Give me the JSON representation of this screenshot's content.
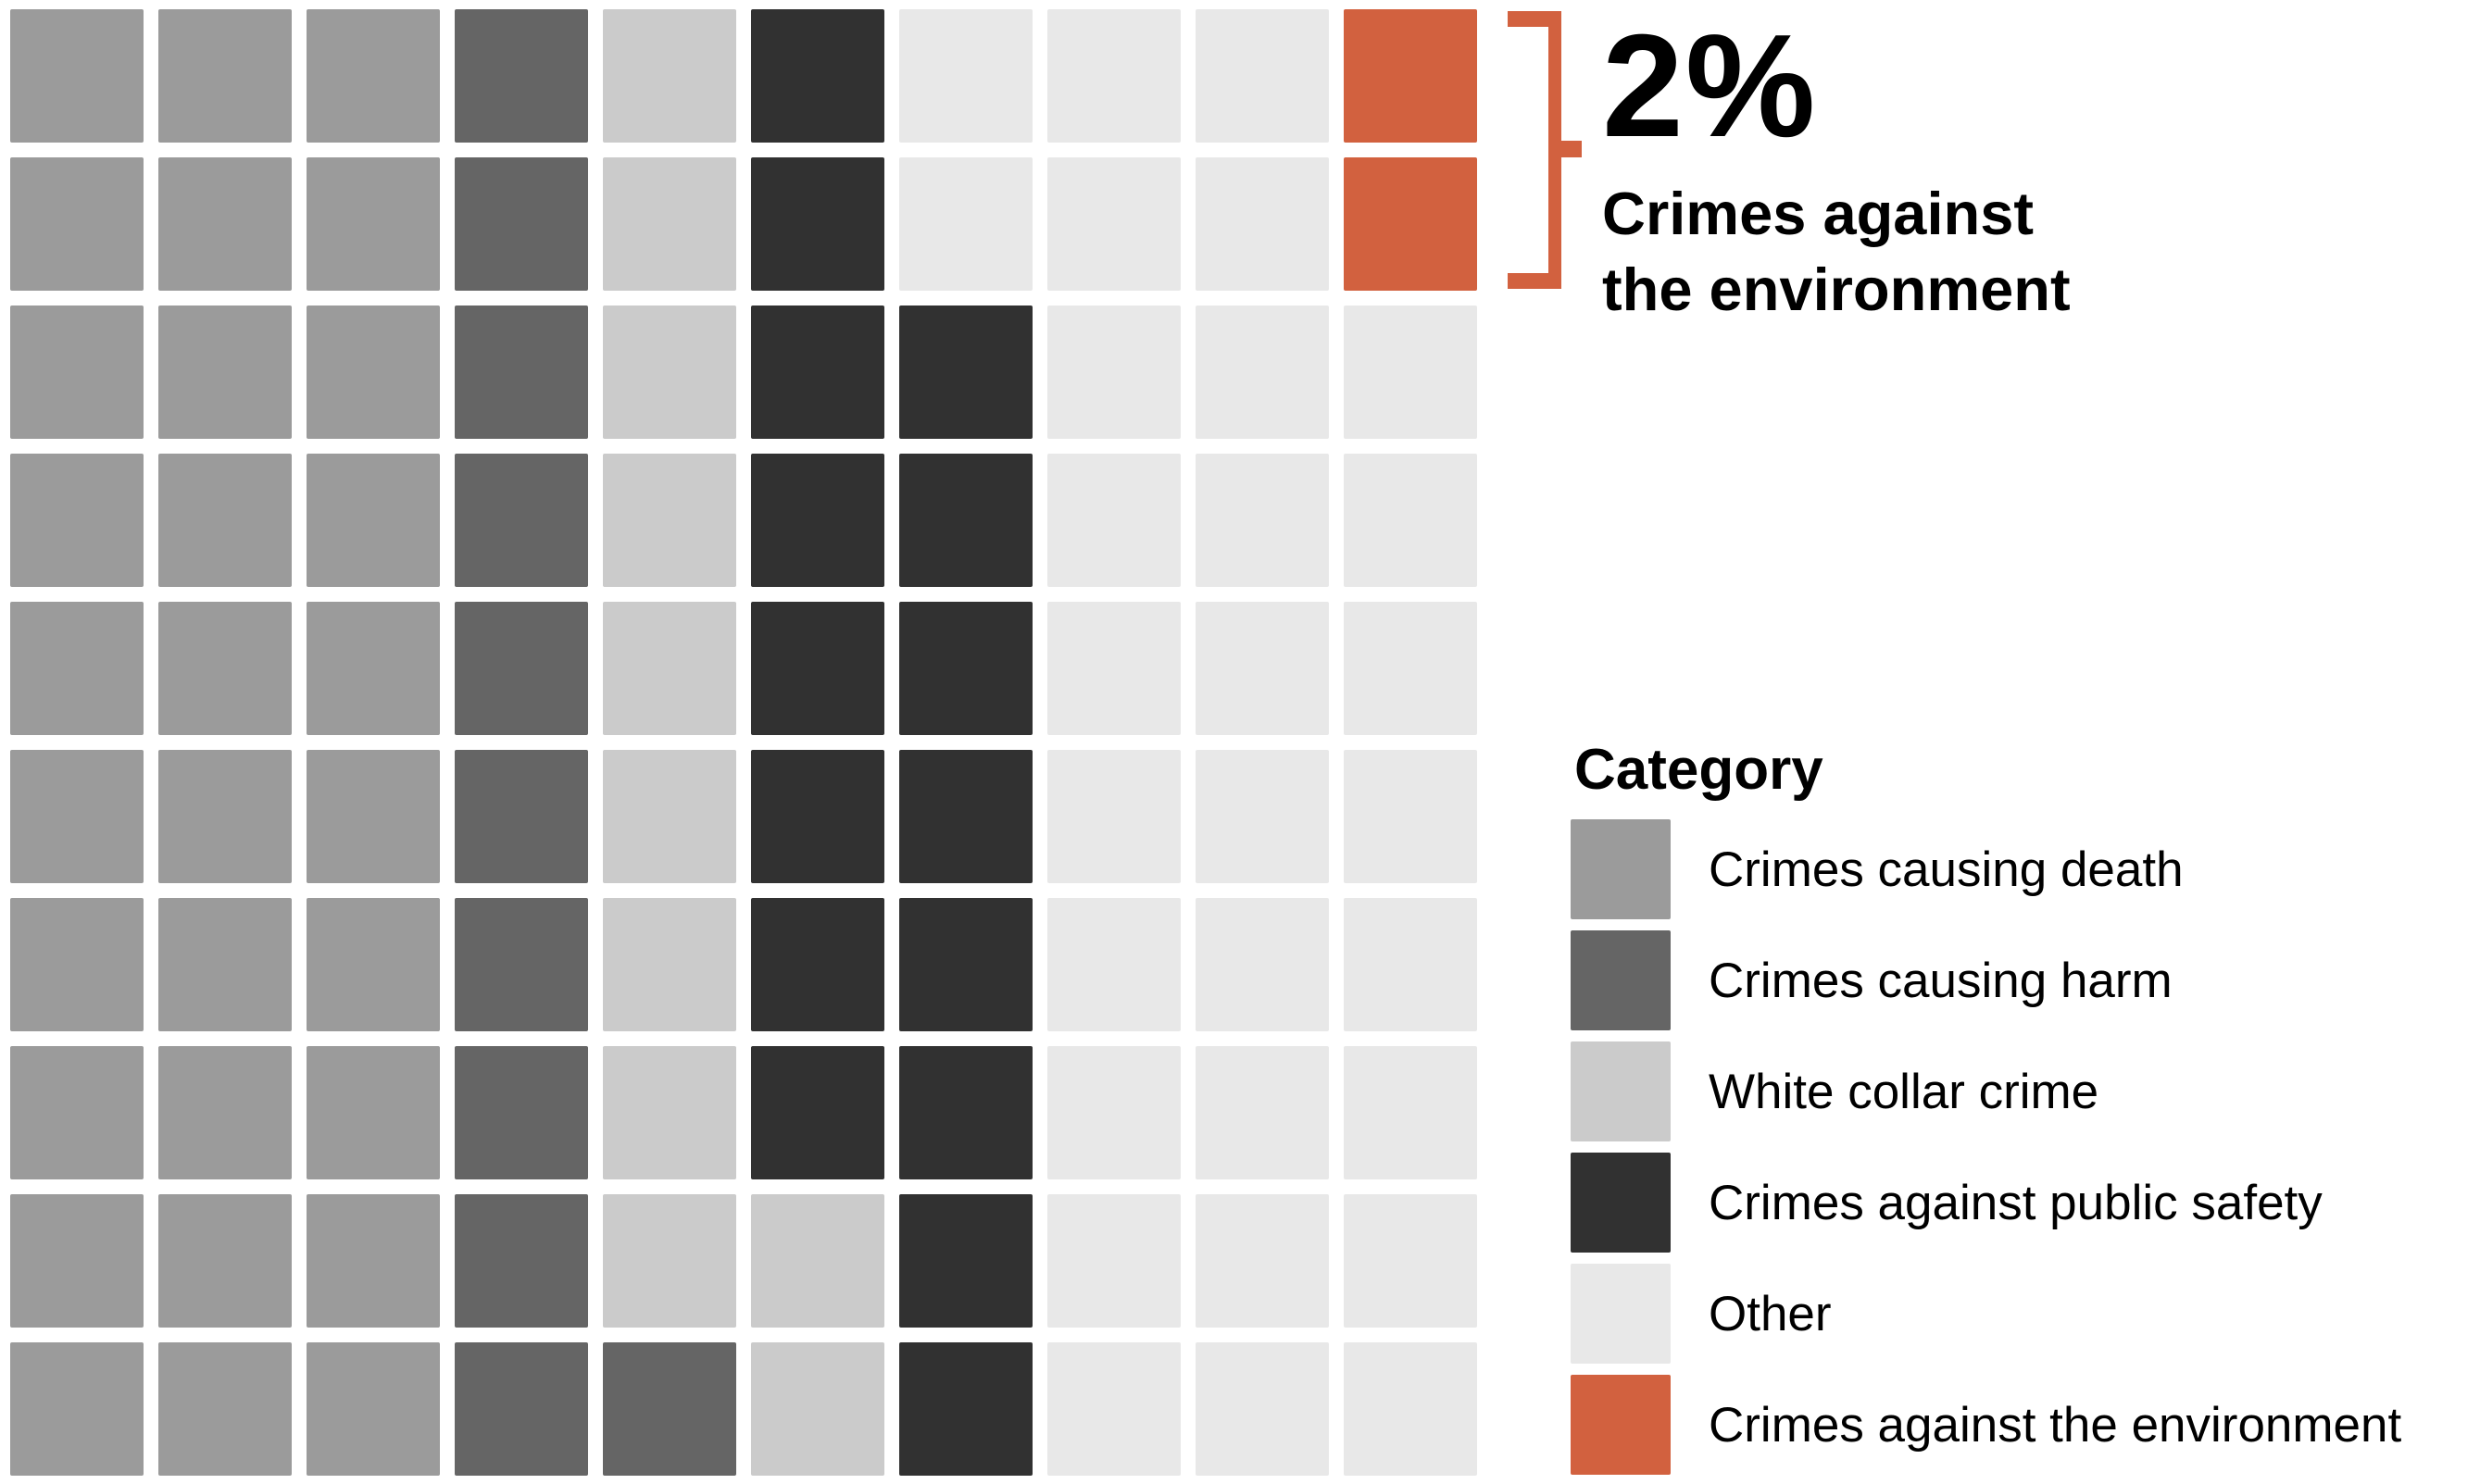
{
  "chart_data": {
    "type": "waffle",
    "rows": 10,
    "cols": 10,
    "cell_unit_percent": 1,
    "legend_title": "Category",
    "categories": [
      {
        "id": "death",
        "label": "Crimes causing death",
        "color": "#9b9b9b",
        "percent": 30
      },
      {
        "id": "harm",
        "label": "Crimes causing harm",
        "color": "#656565",
        "percent": 11
      },
      {
        "id": "white_collar",
        "label": "White collar crime",
        "color": "#cbcbcb",
        "percent": 11
      },
      {
        "id": "public_safety",
        "label": "Crimes against public safety",
        "color": "#313131",
        "percent": 16
      },
      {
        "id": "other",
        "label": "Other",
        "color": "#e8e8e8",
        "percent": 30
      },
      {
        "id": "environment",
        "label": "Crimes against the environment",
        "color": "#d2613f",
        "percent": 2
      }
    ],
    "grid_rows": [
      [
        "death",
        "death",
        "death",
        "harm",
        "white_collar",
        "public_safety",
        "other",
        "other",
        "other",
        "environment"
      ],
      [
        "death",
        "death",
        "death",
        "harm",
        "white_collar",
        "public_safety",
        "other",
        "other",
        "other",
        "environment"
      ],
      [
        "death",
        "death",
        "death",
        "harm",
        "white_collar",
        "public_safety",
        "public_safety",
        "other",
        "other",
        "other"
      ],
      [
        "death",
        "death",
        "death",
        "harm",
        "white_collar",
        "public_safety",
        "public_safety",
        "other",
        "other",
        "other"
      ],
      [
        "death",
        "death",
        "death",
        "harm",
        "white_collar",
        "public_safety",
        "public_safety",
        "other",
        "other",
        "other"
      ],
      [
        "death",
        "death",
        "death",
        "harm",
        "white_collar",
        "public_safety",
        "public_safety",
        "other",
        "other",
        "other"
      ],
      [
        "death",
        "death",
        "death",
        "harm",
        "white_collar",
        "public_safety",
        "public_safety",
        "other",
        "other",
        "other"
      ],
      [
        "death",
        "death",
        "death",
        "harm",
        "white_collar",
        "public_safety",
        "public_safety",
        "other",
        "other",
        "other"
      ],
      [
        "death",
        "death",
        "death",
        "harm",
        "white_collar",
        "white_collar",
        "public_safety",
        "other",
        "other",
        "other"
      ],
      [
        "death",
        "death",
        "death",
        "harm",
        "harm",
        "white_collar",
        "public_safety",
        "other",
        "other",
        "other"
      ]
    ],
    "callout": {
      "percent": "2%",
      "label": "Crimes against\nthe environment",
      "category_id": "environment",
      "accent_color": "#d2613f"
    }
  }
}
